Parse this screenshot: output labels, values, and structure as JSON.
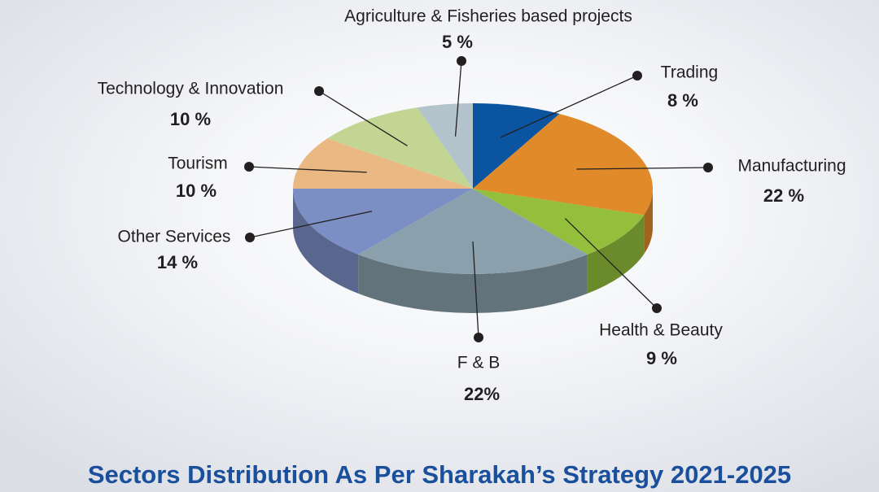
{
  "chart_data": {
    "type": "pie",
    "title": "Sectors Distribution As Per Sharakah’s Strategy 2021-2025",
    "categories": [
      "Trading",
      "Manufacturing",
      "Health & Beauty",
      "F & B",
      "Other Services",
      "Tourism",
      "Technology & Innovation",
      "Agriculture & Fisheries based projects"
    ],
    "values": [
      8,
      22,
      9,
      22,
      14,
      10,
      10,
      5
    ],
    "value_labels": [
      "8 %",
      "22 %",
      "9 %",
      "22%",
      "14 %",
      "10 %",
      "10 %",
      "5 %"
    ],
    "colors": [
      "#0a54a0",
      "#e08a2a",
      "#93bf3c",
      "#8aa0ac",
      "#7b8fc5",
      "#eab883",
      "#c2d592",
      "#b3c3cc"
    ]
  }
}
